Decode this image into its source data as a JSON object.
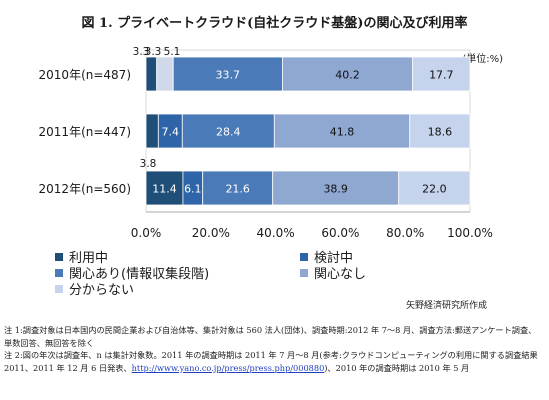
{
  "title": "図 1. プライベートクラウド(自社クラウド基盤)の関心及び利用率",
  "unit": "(単位:%)",
  "source": "矢野経済研究所作成",
  "colors": {
    "using": "#1f4e79",
    "considering": "#2e64a8",
    "interested": "#4a7ab8",
    "not_interested": "#8fa8d2",
    "unknown": "#c5d3ec",
    "tiny": "#cfd9ea"
  },
  "chart_data": {
    "type": "bar",
    "orientation": "horizontal",
    "stacked": true,
    "categories": [
      "2010年(n=487)",
      "2011年(n=447)",
      "2012年(n=560)"
    ],
    "series": [
      {
        "name": "利用中",
        "values": [
          3.3,
          0.0,
          11.4
        ]
      },
      {
        "name": "検討中",
        "values": [
          5.1,
          7.4,
          6.1
        ]
      },
      {
        "name": "関心あり(情報収集段階)",
        "values": [
          33.7,
          28.4,
          21.6
        ]
      },
      {
        "name": "関心なし",
        "values": [
          40.2,
          41.8,
          38.9
        ]
      },
      {
        "name": "分からない",
        "values": [
          17.7,
          18.6,
          22.0
        ]
      }
    ],
    "extra_segments": [
      {
        "category_index": 0,
        "value": 3.3,
        "label": "3.3"
      },
      {
        "category_index": 1,
        "value": 3.8,
        "label": "3.8"
      },
      {
        "category_index": 2,
        "value": 3.8,
        "label": "3.8"
      }
    ],
    "xlim": [
      0,
      100
    ],
    "xticks": [
      "0.0%",
      "20.0%",
      "40.0%",
      "60.0%",
      "80.0%",
      "100.0%"
    ],
    "legend_position": "bottom-left"
  },
  "notes": {
    "note1": "注 1:調査対象は日本国内の民間企業および自治体等、集計対象は 560 法人(団体)、調査時期:2012 年 7〜8 月、調査方法:郵送アンケート調査、単数回答、無回答を除く",
    "note2_before": "注 2:図の年次は調査年、n は集計対象数。2011 年の調査時期は 2011 年 7 月〜8 月(参考:クラウドコンピューティングの利用に関する調査結果 2011、2011 年 12 月 6 日発表、",
    "note2_link": "http://www.yano.co.jp/press/press.php/000880",
    "note2_after": ")、2010 年の調査時期は 2010 年 5 月"
  }
}
